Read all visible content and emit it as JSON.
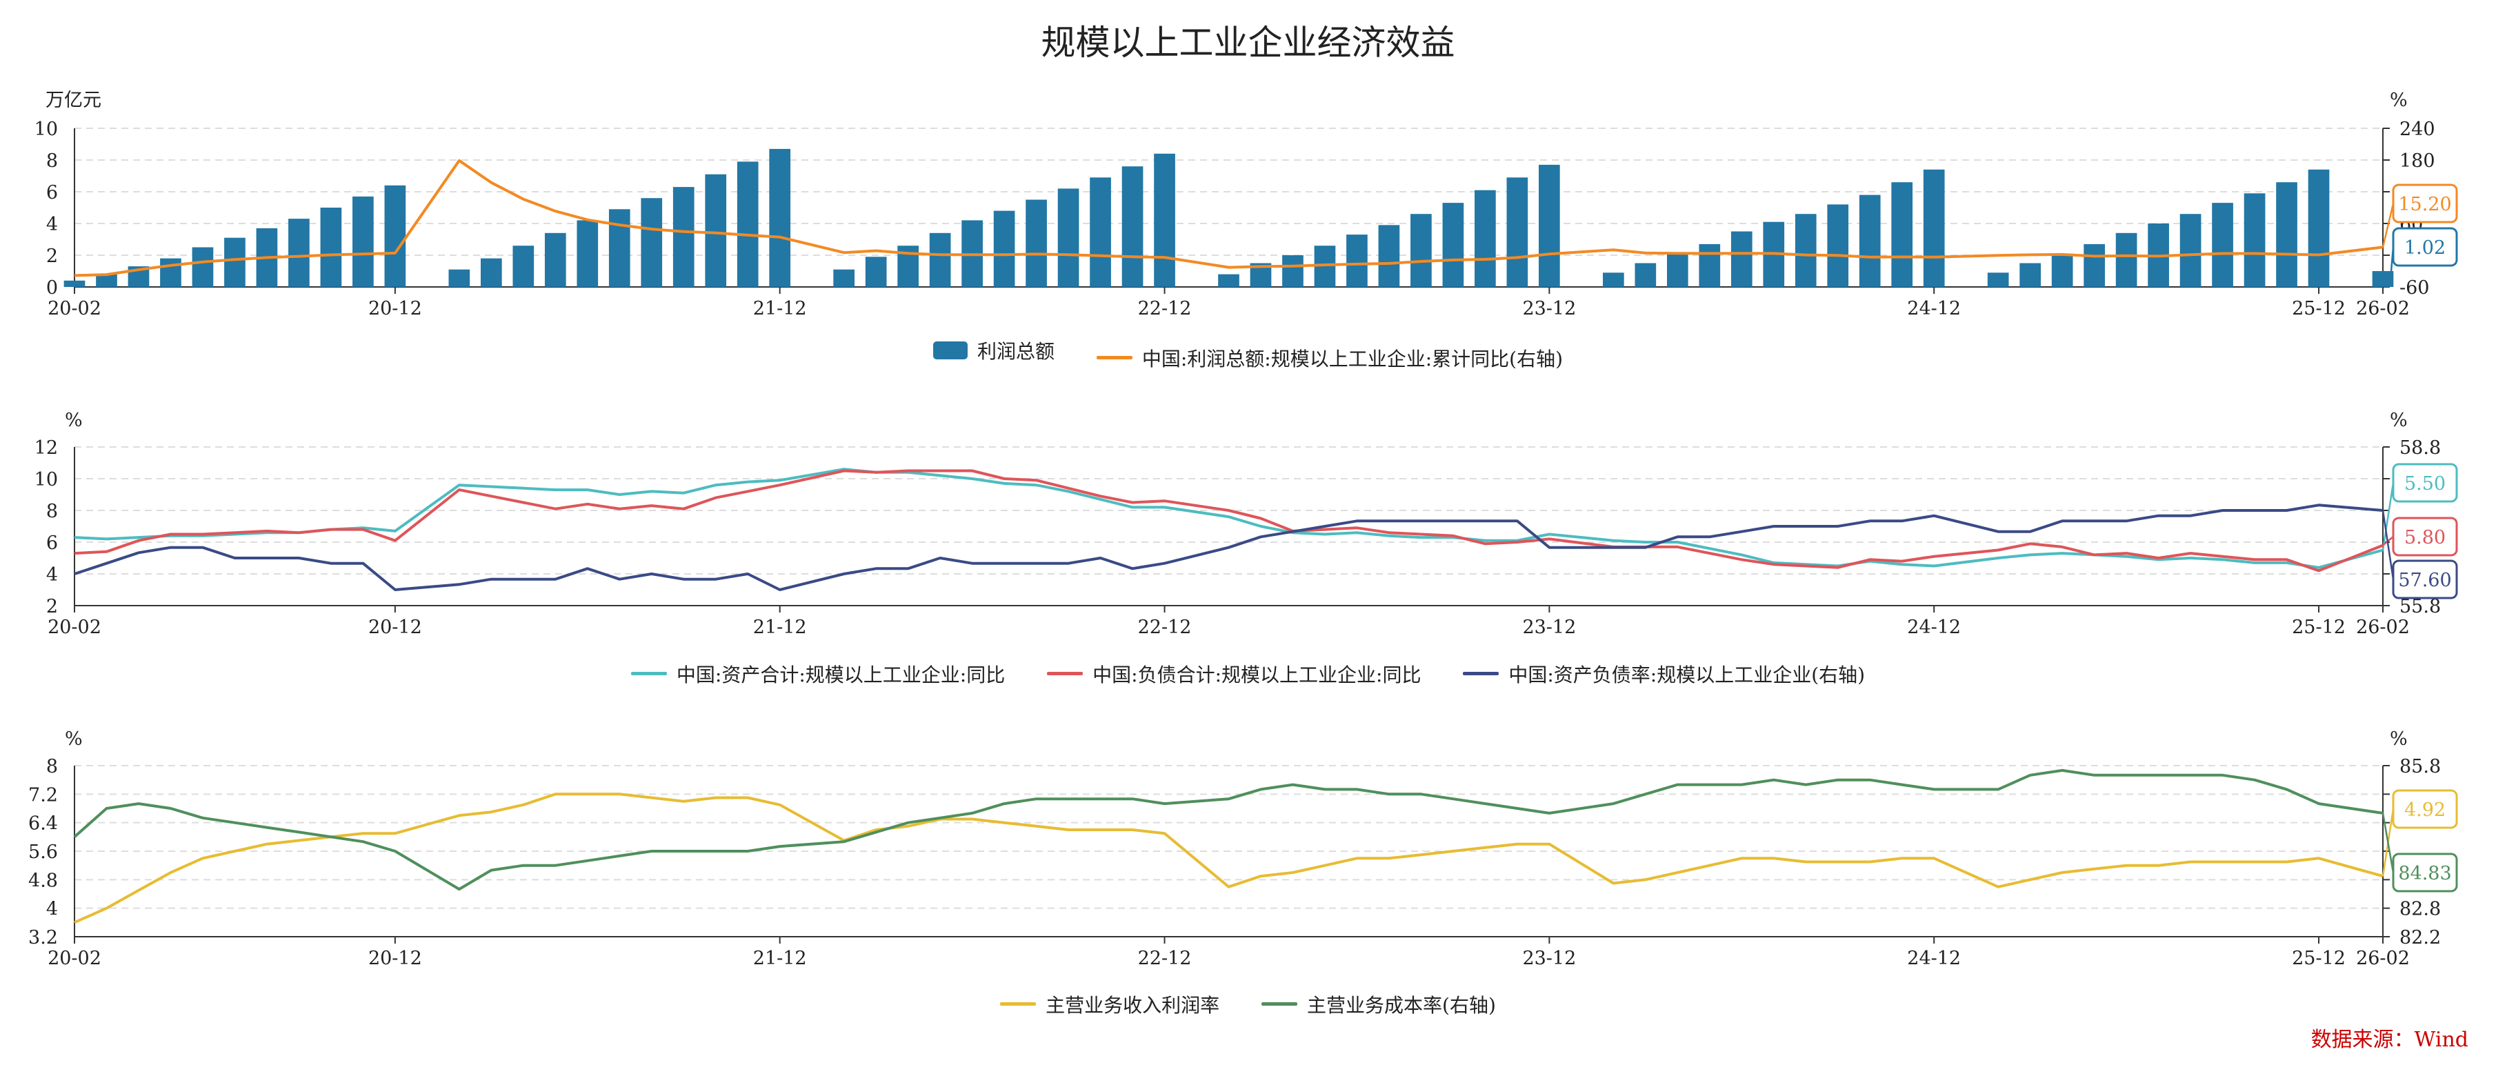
{
  "title": "规模以上工业企业经济效益",
  "source": "数据来源：Wind",
  "colors": {
    "bar": "#2277a5",
    "profit_yoy": "#f28a24",
    "assets": "#4dbcc0",
    "liabilities": "#de5559",
    "debt_ratio": "#3a4a86",
    "margin": "#e7bc33",
    "cost_rate": "#4f8f5c",
    "grid": "#dddddd"
  },
  "chart_data": [
    {
      "type": "bar",
      "left_unit": "万亿元",
      "right_unit": "%",
      "ylim": [
        0,
        10
      ],
      "y_ticks": [
        0,
        2,
        4,
        6,
        8,
        10
      ],
      "y2lim": [
        -60,
        240
      ],
      "y2_ticks": [
        -60,
        0,
        60,
        120,
        180,
        240
      ],
      "x_ticks": [
        {
          "label": "20-02",
          "i": 0
        },
        {
          "label": "20-12",
          "i": 10
        },
        {
          "label": "21-12",
          "i": 22
        },
        {
          "label": "22-12",
          "i": 34
        },
        {
          "label": "23-12",
          "i": 46
        },
        {
          "label": "24-12",
          "i": 58
        },
        {
          "label": "25-12",
          "i": 70
        },
        {
          "label": "26-02",
          "i": 72
        }
      ],
      "series": [
        {
          "name": "利润总额",
          "kind": "bar",
          "axis": "left",
          "color_key": "bar",
          "values": [
            0.4,
            0.8,
            1.3,
            1.8,
            2.5,
            3.1,
            3.7,
            4.3,
            5.0,
            5.7,
            6.4,
            null,
            1.1,
            1.8,
            2.6,
            3.4,
            4.2,
            4.9,
            5.6,
            6.3,
            7.1,
            7.9,
            8.7,
            null,
            1.1,
            1.9,
            2.6,
            3.4,
            4.2,
            4.8,
            5.5,
            6.2,
            6.9,
            7.6,
            8.4,
            null,
            0.8,
            1.5,
            2.0,
            2.6,
            3.3,
            3.9,
            4.6,
            5.3,
            6.1,
            6.9,
            7.7,
            null,
            0.9,
            1.5,
            2.1,
            2.7,
            3.5,
            4.1,
            4.6,
            5.2,
            5.8,
            6.6,
            7.4,
            null,
            0.9,
            1.5,
            2.1,
            2.7,
            3.4,
            4.0,
            4.6,
            5.3,
            5.9,
            6.6,
            7.4,
            null,
            1.0
          ],
          "label": "1.02"
        },
        {
          "name": "中国:利润总额:规模以上工业企业:累计同比(右轴)",
          "kind": "line",
          "axis": "right",
          "color_key": "profit_yoy",
          "values": [
            -38.3,
            -36.7,
            -27.4,
            -19.3,
            -12.8,
            -8.1,
            -4.4,
            -2.1,
            0.7,
            2.4,
            4.1,
            null,
            178.9,
            137.3,
            106.0,
            83.4,
            66.9,
            57.3,
            49.5,
            44.7,
            42.2,
            38.0,
            34.3,
            null,
            5.0,
            8.5,
            3.5,
            1.0,
            1.0,
            1.0,
            2.1,
            1.0,
            -1.1,
            -3.0,
            -4.0,
            null,
            -22.9,
            -21.4,
            -20.6,
            -18.2,
            -16.8,
            -15.5,
            -11.7,
            -9.0,
            -7.8,
            -4.4,
            2.3,
            null,
            10.2,
            4.3,
            3.5,
            3.4,
            3.6,
            3.4,
            0.5,
            -0.3,
            -3.5,
            -3.3,
            -3.5,
            null,
            -0.3,
            0.8,
            1.4,
            -1.8,
            -1.1,
            -1.8,
            1.0,
            3.2,
            3.2,
            1.9,
            0.6,
            null,
            15.2
          ],
          "label": "15.20"
        }
      ]
    },
    {
      "type": "line",
      "left_unit": "%",
      "right_unit": "%",
      "ylim": [
        2,
        12
      ],
      "y_ticks": [
        2,
        4,
        6,
        8,
        10,
        12
      ],
      "y2lim": [
        55.8,
        58.8
      ],
      "y2_ticks": [
        55.8,
        56.4,
        57.0,
        57.6,
        58.2,
        58.8
      ],
      "y2_tick_labels": [
        "55.8",
        "",
        "",
        "",
        "",
        "58.8"
      ],
      "x_ticks": [
        {
          "label": "20-02",
          "i": 0
        },
        {
          "label": "20-12",
          "i": 10
        },
        {
          "label": "21-12",
          "i": 22
        },
        {
          "label": "22-12",
          "i": 34
        },
        {
          "label": "23-12",
          "i": 46
        },
        {
          "label": "24-12",
          "i": 58
        },
        {
          "label": "25-12",
          "i": 70
        },
        {
          "label": "26-02",
          "i": 72
        }
      ],
      "series": [
        {
          "name": "中国:资产合计:规模以上工业企业:同比",
          "kind": "line",
          "axis": "left",
          "color_key": "assets",
          "values": [
            6.3,
            6.2,
            6.3,
            6.4,
            6.4,
            6.5,
            6.6,
            6.6,
            6.8,
            6.9,
            6.7,
            null,
            9.6,
            9.5,
            9.4,
            9.3,
            9.3,
            9.0,
            9.2,
            9.1,
            9.6,
            9.8,
            9.9,
            null,
            10.6,
            10.4,
            10.4,
            10.2,
            10.0,
            9.7,
            9.6,
            9.2,
            8.7,
            8.2,
            8.2,
            null,
            7.6,
            7.0,
            6.6,
            6.5,
            6.6,
            6.4,
            6.3,
            6.3,
            6.1,
            6.1,
            6.5,
            null,
            6.1,
            6.0,
            6.0,
            5.6,
            5.2,
            4.7,
            4.6,
            4.5,
            4.8,
            4.6,
            4.5,
            null,
            5.0,
            5.2,
            5.3,
            5.2,
            5.1,
            4.9,
            5.0,
            4.9,
            4.7,
            4.7,
            4.4,
            null,
            5.5
          ],
          "label": "5.50"
        },
        {
          "name": "中国:负债合计:规模以上工业企业:同比",
          "kind": "line",
          "axis": "left",
          "color_key": "liabilities",
          "values": [
            5.3,
            5.4,
            6.1,
            6.5,
            6.5,
            6.6,
            6.7,
            6.6,
            6.8,
            6.8,
            6.1,
            null,
            9.3,
            8.9,
            8.5,
            8.1,
            8.4,
            8.1,
            8.3,
            8.1,
            8.8,
            9.2,
            9.6,
            null,
            10.5,
            10.4,
            10.5,
            10.5,
            10.5,
            10.0,
            9.9,
            9.4,
            8.9,
            8.5,
            8.6,
            null,
            8.0,
            7.5,
            6.7,
            6.8,
            6.9,
            6.6,
            6.5,
            6.4,
            5.9,
            6.0,
            6.2,
            null,
            5.7,
            5.7,
            5.7,
            5.3,
            4.9,
            4.6,
            4.5,
            4.4,
            4.9,
            4.8,
            5.1,
            null,
            5.5,
            5.9,
            5.7,
            5.2,
            5.3,
            5.0,
            5.3,
            5.1,
            4.9,
            4.9,
            4.2,
            null,
            5.8
          ],
          "label": "5.80"
        },
        {
          "name": "中国:资产负债率:规模以上工业企业(右轴)",
          "kind": "line",
          "axis": "right",
          "color_key": "debt_ratio",
          "values": [
            56.4,
            56.6,
            56.8,
            56.9,
            56.9,
            56.7,
            56.7,
            56.7,
            56.6,
            56.6,
            56.1,
            null,
            56.2,
            56.3,
            56.3,
            56.3,
            56.5,
            56.3,
            56.4,
            56.3,
            56.3,
            56.4,
            56.1,
            null,
            56.4,
            56.5,
            56.5,
            56.7,
            56.6,
            56.6,
            56.6,
            56.6,
            56.7,
            56.5,
            56.6,
            null,
            56.9,
            57.1,
            57.2,
            57.3,
            57.4,
            57.4,
            57.4,
            57.4,
            57.4,
            57.4,
            56.9,
            null,
            56.9,
            56.9,
            57.1,
            57.1,
            57.2,
            57.3,
            57.3,
            57.3,
            57.4,
            57.4,
            57.5,
            null,
            57.2,
            57.2,
            57.4,
            57.4,
            57.4,
            57.5,
            57.5,
            57.6,
            57.6,
            57.6,
            57.7,
            null,
            57.6
          ],
          "label": "57.60"
        }
      ]
    },
    {
      "type": "line",
      "left_unit": "%",
      "right_unit": "%",
      "ylim": [
        3.2,
        8
      ],
      "y_ticks": [
        3.2,
        4,
        4.8,
        5.6,
        6.4,
        7.2,
        8
      ],
      "y2lim": [
        82.2,
        85.8
      ],
      "y2_ticks": [
        82.2,
        82.8,
        83.4,
        84.0,
        84.6,
        85.2,
        85.8
      ],
      "y2_tick_labels": [
        "82.2",
        "82.8",
        "",
        "",
        "",
        "",
        "85.8"
      ],
      "x_ticks": [
        {
          "label": "20-02",
          "i": 0
        },
        {
          "label": "20-12",
          "i": 10
        },
        {
          "label": "21-12",
          "i": 22
        },
        {
          "label": "22-12",
          "i": 34
        },
        {
          "label": "23-12",
          "i": 46
        },
        {
          "label": "24-12",
          "i": 58
        },
        {
          "label": "25-12",
          "i": 70
        },
        {
          "label": "26-02",
          "i": 72
        }
      ],
      "series": [
        {
          "name": "主营业务收入利润率",
          "kind": "line",
          "axis": "left",
          "color_key": "margin",
          "values": [
            3.6,
            4.0,
            4.5,
            5.0,
            5.4,
            5.6,
            5.8,
            5.9,
            6.0,
            6.1,
            6.1,
            null,
            6.6,
            6.7,
            6.9,
            7.2,
            7.2,
            7.2,
            7.1,
            7.0,
            7.1,
            7.1,
            6.9,
            null,
            5.9,
            6.2,
            6.3,
            6.5,
            6.5,
            6.4,
            6.3,
            6.2,
            6.2,
            6.2,
            6.1,
            null,
            4.6,
            4.9,
            5.0,
            5.2,
            5.4,
            5.4,
            5.5,
            5.6,
            5.7,
            5.8,
            5.8,
            null,
            4.7,
            4.8,
            5.0,
            5.2,
            5.4,
            5.4,
            5.3,
            5.3,
            5.3,
            5.4,
            5.4,
            null,
            4.6,
            4.8,
            5.0,
            5.1,
            5.2,
            5.2,
            5.3,
            5.3,
            5.3,
            5.3,
            5.4,
            null,
            4.9
          ],
          "label": "4.92"
        },
        {
          "name": "主营业务成本率(右轴)",
          "kind": "line",
          "axis": "right",
          "color_key": "cost_rate",
          "values": [
            84.3,
            84.9,
            85.0,
            84.9,
            84.7,
            84.6,
            84.5,
            84.4,
            84.3,
            84.2,
            84.0,
            null,
            83.2,
            83.6,
            83.7,
            83.7,
            83.8,
            83.9,
            84.0,
            84.0,
            84.0,
            84.0,
            84.1,
            null,
            84.2,
            84.4,
            84.6,
            84.7,
            84.8,
            85.0,
            85.1,
            85.1,
            85.1,
            85.1,
            85.0,
            null,
            85.1,
            85.3,
            85.4,
            85.3,
            85.3,
            85.2,
            85.2,
            85.1,
            85.0,
            84.9,
            84.8,
            null,
            85.0,
            85.2,
            85.4,
            85.4,
            85.4,
            85.5,
            85.4,
            85.5,
            85.5,
            85.4,
            85.3,
            null,
            85.3,
            85.6,
            85.7,
            85.6,
            85.6,
            85.6,
            85.6,
            85.6,
            85.5,
            85.3,
            85.0,
            null,
            84.8
          ],
          "label": "84.83"
        }
      ]
    }
  ]
}
